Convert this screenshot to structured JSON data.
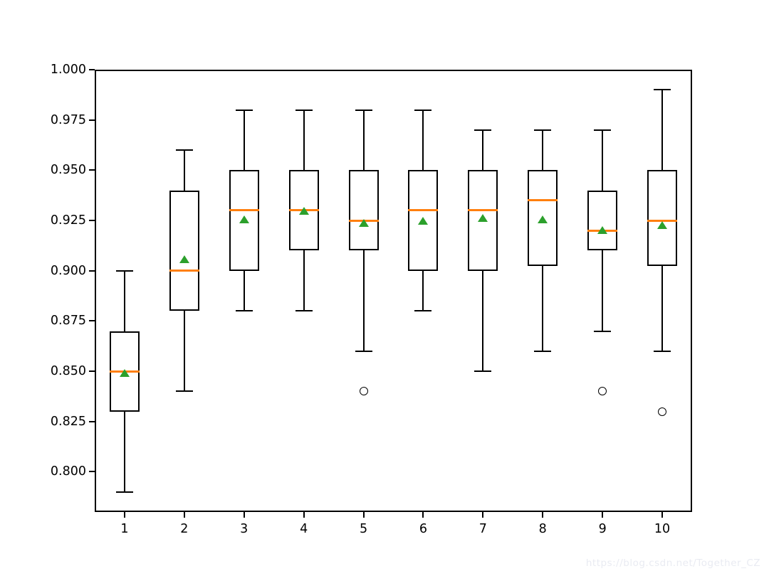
{
  "watermark": {
    "text": "https://blog.csdn.net/Together_CZ",
    "color": "#e9ebf2"
  },
  "chart_data": {
    "type": "boxplot",
    "title": "",
    "xlabel": "",
    "ylabel": "",
    "grid": false,
    "legend": null,
    "xlim": [
      0.5,
      10.5
    ],
    "ylim": [
      0.78,
      1.0
    ],
    "categories": [
      "1",
      "2",
      "3",
      "4",
      "5",
      "6",
      "7",
      "8",
      "9",
      "10"
    ],
    "yticks": [
      {
        "value": 0.8,
        "label": "0.800"
      },
      {
        "value": 0.825,
        "label": "0.825"
      },
      {
        "value": 0.85,
        "label": "0.850"
      },
      {
        "value": 0.875,
        "label": "0.875"
      },
      {
        "value": 0.9,
        "label": "0.900"
      },
      {
        "value": 0.925,
        "label": "0.925"
      },
      {
        "value": 0.95,
        "label": "0.950"
      },
      {
        "value": 0.975,
        "label": "0.975"
      },
      {
        "value": 1.0,
        "label": "1.000"
      }
    ],
    "colors": {
      "line": "#000000",
      "median": "#ff7f0e",
      "mean_marker": "#2ca02c",
      "background": "#ffffff"
    },
    "boxes": [
      {
        "position": 1,
        "label": "1",
        "whisker_low": 0.79,
        "q1": 0.83,
        "median": 0.85,
        "mean": 0.849,
        "q3": 0.87,
        "whisker_high": 0.9,
        "outliers": []
      },
      {
        "position": 2,
        "label": "2",
        "whisker_low": 0.84,
        "q1": 0.88,
        "median": 0.9,
        "mean": 0.9055,
        "q3": 0.94,
        "whisker_high": 0.96,
        "outliers": []
      },
      {
        "position": 3,
        "label": "3",
        "whisker_low": 0.88,
        "q1": 0.9,
        "median": 0.93,
        "mean": 0.9255,
        "q3": 0.95,
        "whisker_high": 0.98,
        "outliers": []
      },
      {
        "position": 4,
        "label": "4",
        "whisker_low": 0.88,
        "q1": 0.91,
        "median": 0.93,
        "mean": 0.9295,
        "q3": 0.95,
        "whisker_high": 0.98,
        "outliers": []
      },
      {
        "position": 5,
        "label": "5",
        "whisker_low": 0.86,
        "q1": 0.91,
        "median": 0.925,
        "mean": 0.9235,
        "q3": 0.95,
        "whisker_high": 0.98,
        "outliers": [
          0.84
        ]
      },
      {
        "position": 6,
        "label": "6",
        "whisker_low": 0.88,
        "q1": 0.9,
        "median": 0.93,
        "mean": 0.9245,
        "q3": 0.95,
        "whisker_high": 0.98,
        "outliers": []
      },
      {
        "position": 7,
        "label": "7",
        "whisker_low": 0.85,
        "q1": 0.9,
        "median": 0.93,
        "mean": 0.926,
        "q3": 0.95,
        "whisker_high": 0.97,
        "outliers": []
      },
      {
        "position": 8,
        "label": "8",
        "whisker_low": 0.86,
        "q1": 0.9025,
        "median": 0.935,
        "mean": 0.9255,
        "q3": 0.95,
        "whisker_high": 0.97,
        "outliers": []
      },
      {
        "position": 9,
        "label": "9",
        "whisker_low": 0.87,
        "q1": 0.91,
        "median": 0.92,
        "mean": 0.92,
        "q3": 0.94,
        "whisker_high": 0.97,
        "outliers": [
          0.84
        ]
      },
      {
        "position": 10,
        "label": "10",
        "whisker_low": 0.86,
        "q1": 0.9025,
        "median": 0.925,
        "mean": 0.9225,
        "q3": 0.95,
        "whisker_high": 0.99,
        "outliers": [
          0.83
        ]
      }
    ]
  }
}
